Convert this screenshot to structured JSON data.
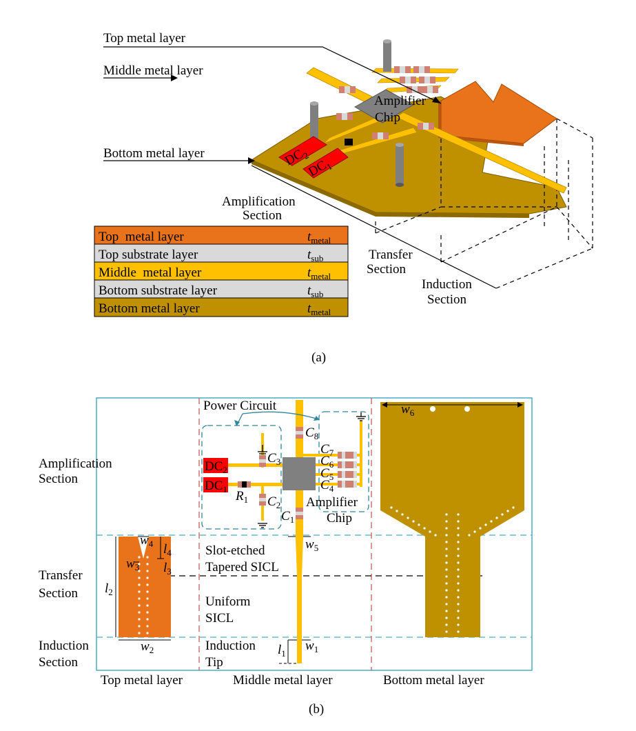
{
  "panel_a": {
    "caption": "(a)",
    "callouts": {
      "top_metal": "Top metal layer",
      "middle_metal": "Middle metal layer",
      "bottom_metal": "Bottom metal layer"
    },
    "chip_line1": "Amplifier",
    "chip_line2": "Chip",
    "dc2": "DC",
    "dc1": "DC",
    "dc2_sub": "2",
    "dc1_sub": "1",
    "sections": {
      "amp_l1": "Amplification",
      "amp_l2": "Section",
      "transfer_l1": "Transfer",
      "transfer_l2": "Section",
      "induction_l1": "Induction",
      "induction_l2": "Section"
    },
    "stack": [
      {
        "name": "Top  metal layer",
        "sym": "t",
        "sub": "metal",
        "color": "#E8731A"
      },
      {
        "name": "Top substrate layer",
        "sym": "t",
        "sub": "sub",
        "color": "#D9D9D9"
      },
      {
        "name": "Middle  metal layer",
        "sym": "t",
        "sub": "metal",
        "color": "#FFC000"
      },
      {
        "name": "Bottom substrate layer",
        "sym": "t",
        "sub": "sub",
        "color": "#D9D9D9"
      },
      {
        "name": "Bottom metal layer",
        "sym": "t",
        "sub": "metal",
        "color": "#BF9000"
      }
    ]
  },
  "panel_b": {
    "caption": "(b)",
    "power_circuit": "Power Circuit",
    "section_amp_l1": "Amplification",
    "section_amp_l2": "Section",
    "section_transfer_l1": "Transfer",
    "section_transfer_l2": "Section",
    "section_induction_l1": "Induction",
    "section_induction_l2": "Section",
    "slot_l1": "Slot-etched",
    "slot_l2": "Tapered SICL",
    "uniform_l1": "Uniform",
    "uniform_l2": "SICL",
    "induction_tip_l1": "Induction",
    "induction_tip_l2": "Tip",
    "amp_l1": "Amplifier",
    "amp_l2": "Chip",
    "col_top": "Top metal layer",
    "col_middle": "Middle metal layer",
    "col_bottom": "Bottom metal layer",
    "dc2": "DC",
    "dc1": "DC",
    "sub_1": "1",
    "sub_2": "2",
    "sub_3": "3",
    "sub_4": "4",
    "sub_5": "5",
    "sub_6": "6",
    "sub_7": "7",
    "sub_8": "8",
    "sym_C": "C",
    "sym_R": "R",
    "sym_w": "w",
    "sym_l": "l"
  },
  "colors": {
    "top_metal": "#E8731A",
    "middle_metal": "#FFC000",
    "bottom_metal": "#BF9000",
    "substrate": "#D9D9D9",
    "dc_red": "#FF0000",
    "cap_pad": "#D08070",
    "chip_gray": "#808080",
    "frame": "#4BACC6",
    "divider_red": "#C0504D"
  }
}
